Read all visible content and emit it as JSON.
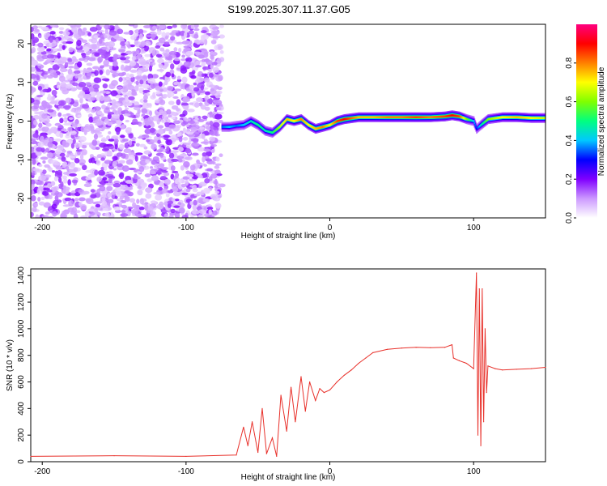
{
  "title": "S199.2025.307.11.37.G05",
  "chart_data": [
    {
      "type": "heatmap",
      "xlabel": "Height of straight line (km)",
      "ylabel": "Frequency (Hz)",
      "xlim": [
        -208,
        150
      ],
      "ylim": [
        -25,
        25
      ],
      "xticks": [
        -200,
        -100,
        0,
        100
      ],
      "xtick_labels": [
        "-200",
        "-100",
        "0",
        "100"
      ],
      "yticks": [
        -20,
        -10,
        0,
        10,
        20
      ],
      "ytick_labels": [
        "-20",
        "-10",
        "0",
        "10",
        "20"
      ],
      "colorbar": {
        "label": "Normalized spectral amplitude",
        "range": [
          0,
          1
        ],
        "ticks": [
          0,
          0.2,
          0.4,
          0.6,
          0.8
        ],
        "tick_labels": [
          "0.0",
          "0.2",
          "0.4",
          "0.6",
          "0.8"
        ],
        "colors": [
          "#ffffff",
          "#cc99ff",
          "#8000ff",
          "#0000ff",
          "#00c8ff",
          "#00ff80",
          "#80ff00",
          "#ffff00",
          "#ff8000",
          "#ff0000",
          "#ff0080"
        ]
      },
      "noise_region_x": [
        -208,
        -75
      ],
      "ridge": {
        "x": [
          -75,
          -70,
          -65,
          -60,
          -55,
          -50,
          -45,
          -40,
          -35,
          -30,
          -25,
          -20,
          -15,
          -10,
          -5,
          0,
          5,
          10,
          20,
          30,
          40,
          50,
          60,
          70,
          80,
          85,
          90,
          95,
          100,
          102,
          105,
          110,
          120,
          130,
          140,
          150
        ],
        "freq": [
          -1.5,
          -1.5,
          -1.2,
          -1,
          0,
          -1,
          -2.5,
          -3,
          -1.5,
          0.5,
          0,
          0.5,
          -1,
          -2,
          -1.5,
          -1,
          0,
          0.5,
          1,
          1,
          1,
          1,
          1,
          1,
          1.2,
          1.5,
          1.2,
          0.5,
          0,
          -2,
          -1,
          0.5,
          1,
          1,
          0.8,
          0.8
        ],
        "amplitude": [
          0.35,
          0.4,
          0.35,
          0.4,
          0.45,
          0.5,
          0.45,
          0.5,
          0.65,
          0.75,
          0.7,
          0.8,
          0.7,
          0.75,
          0.8,
          0.7,
          0.85,
          0.9,
          0.75,
          0.75,
          0.8,
          0.8,
          0.85,
          0.8,
          0.85,
          0.9,
          0.85,
          0.6,
          0.4,
          0.3,
          0.45,
          0.6,
          0.7,
          0.75,
          0.7,
          0.65
        ]
      }
    },
    {
      "type": "line",
      "xlabel": "Height of straight line (km)",
      "ylabel": "SNR (10 * v/v)",
      "xlim": [
        -208,
        150
      ],
      "ylim": [
        0,
        1450
      ],
      "xticks": [
        -200,
        -100,
        0,
        100
      ],
      "xtick_labels": [
        "-200",
        "-100",
        "0",
        "100"
      ],
      "yticks": [
        0,
        200,
        400,
        600,
        800,
        1000,
        1200,
        1400
      ],
      "ytick_labels": [
        "0",
        "200",
        "400",
        "600",
        "800",
        "1000",
        "1200",
        "1400"
      ],
      "color": "#e8302a",
      "series": [
        {
          "name": "SNR",
          "x": [
            -208,
            -150,
            -100,
            -65,
            -60,
            -57,
            -54,
            -50,
            -47,
            -44,
            -40,
            -37,
            -34,
            -30,
            -27,
            -24,
            -20,
            -17,
            -14,
            -10,
            -7,
            -4,
            0,
            5,
            10,
            15,
            20,
            25,
            30,
            40,
            50,
            60,
            70,
            80,
            85,
            86,
            90,
            95,
            100,
            102,
            103,
            104,
            105,
            106,
            107,
            108,
            109,
            110,
            115,
            120,
            130,
            140,
            150
          ],
          "y": [
            40,
            45,
            40,
            50,
            260,
            120,
            300,
            70,
            400,
            60,
            180,
            40,
            500,
            230,
            560,
            300,
            640,
            380,
            600,
            460,
            550,
            520,
            540,
            600,
            650,
            690,
            740,
            780,
            820,
            845,
            855,
            860,
            858,
            860,
            880,
            780,
            760,
            740,
            700,
            1420,
            200,
            1300,
            120,
            1300,
            300,
            1000,
            520,
            720,
            700,
            690,
            695,
            700,
            710
          ]
        }
      ]
    }
  ]
}
